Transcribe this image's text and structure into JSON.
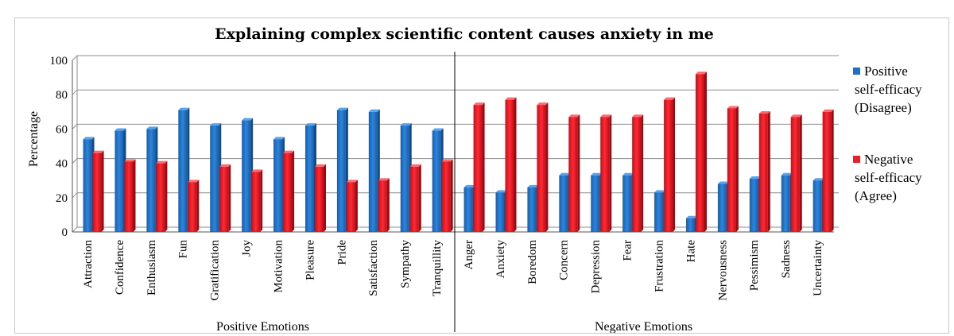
{
  "chart_data": {
    "type": "bar",
    "title": "Explaining complex scientific content causes anxiety in me",
    "ylabel": "Percentage",
    "ylim": [
      0,
      100
    ],
    "yticks": [
      0,
      20,
      40,
      60,
      80,
      100
    ],
    "grid": true,
    "legend_position": "right",
    "categories": [
      "Attraction",
      "Confidence",
      "Enthusiasm",
      "Fun",
      "Gratification",
      "Joy",
      "Motivation",
      "Pleasure",
      "Pride",
      "Satisfaction",
      "Sympathy",
      "Tranquillity",
      "Anger",
      "Anxiety",
      "Boredom",
      "Concern",
      "Depression",
      "Fear",
      "Frustration",
      "Hate",
      "Nervousness",
      "Pessimism",
      "Sadness",
      "Uncertainty"
    ],
    "groups": [
      {
        "label": "Positive Emotions",
        "count": 12
      },
      {
        "label": "Negative Emotions",
        "count": 12
      }
    ],
    "series": [
      {
        "name_lines": [
          "Positive",
          "self-efficacy",
          "(Disagree)"
        ],
        "color": "#1f6fc4",
        "values": [
          54,
          59,
          60,
          71,
          62,
          65,
          54,
          62,
          71,
          70,
          62,
          59,
          26,
          23,
          26,
          33,
          33,
          33,
          23,
          8,
          28,
          31,
          33,
          30
        ]
      },
      {
        "name_lines": [
          "Negative",
          "self-efficacy",
          "(Agree)"
        ],
        "color": "#e8202a",
        "values": [
          46,
          41,
          40,
          29,
          38,
          35,
          46,
          38,
          29,
          30,
          38,
          41,
          74,
          77,
          74,
          67,
          67,
          67,
          77,
          92,
          72,
          69,
          67,
          70
        ]
      }
    ]
  }
}
